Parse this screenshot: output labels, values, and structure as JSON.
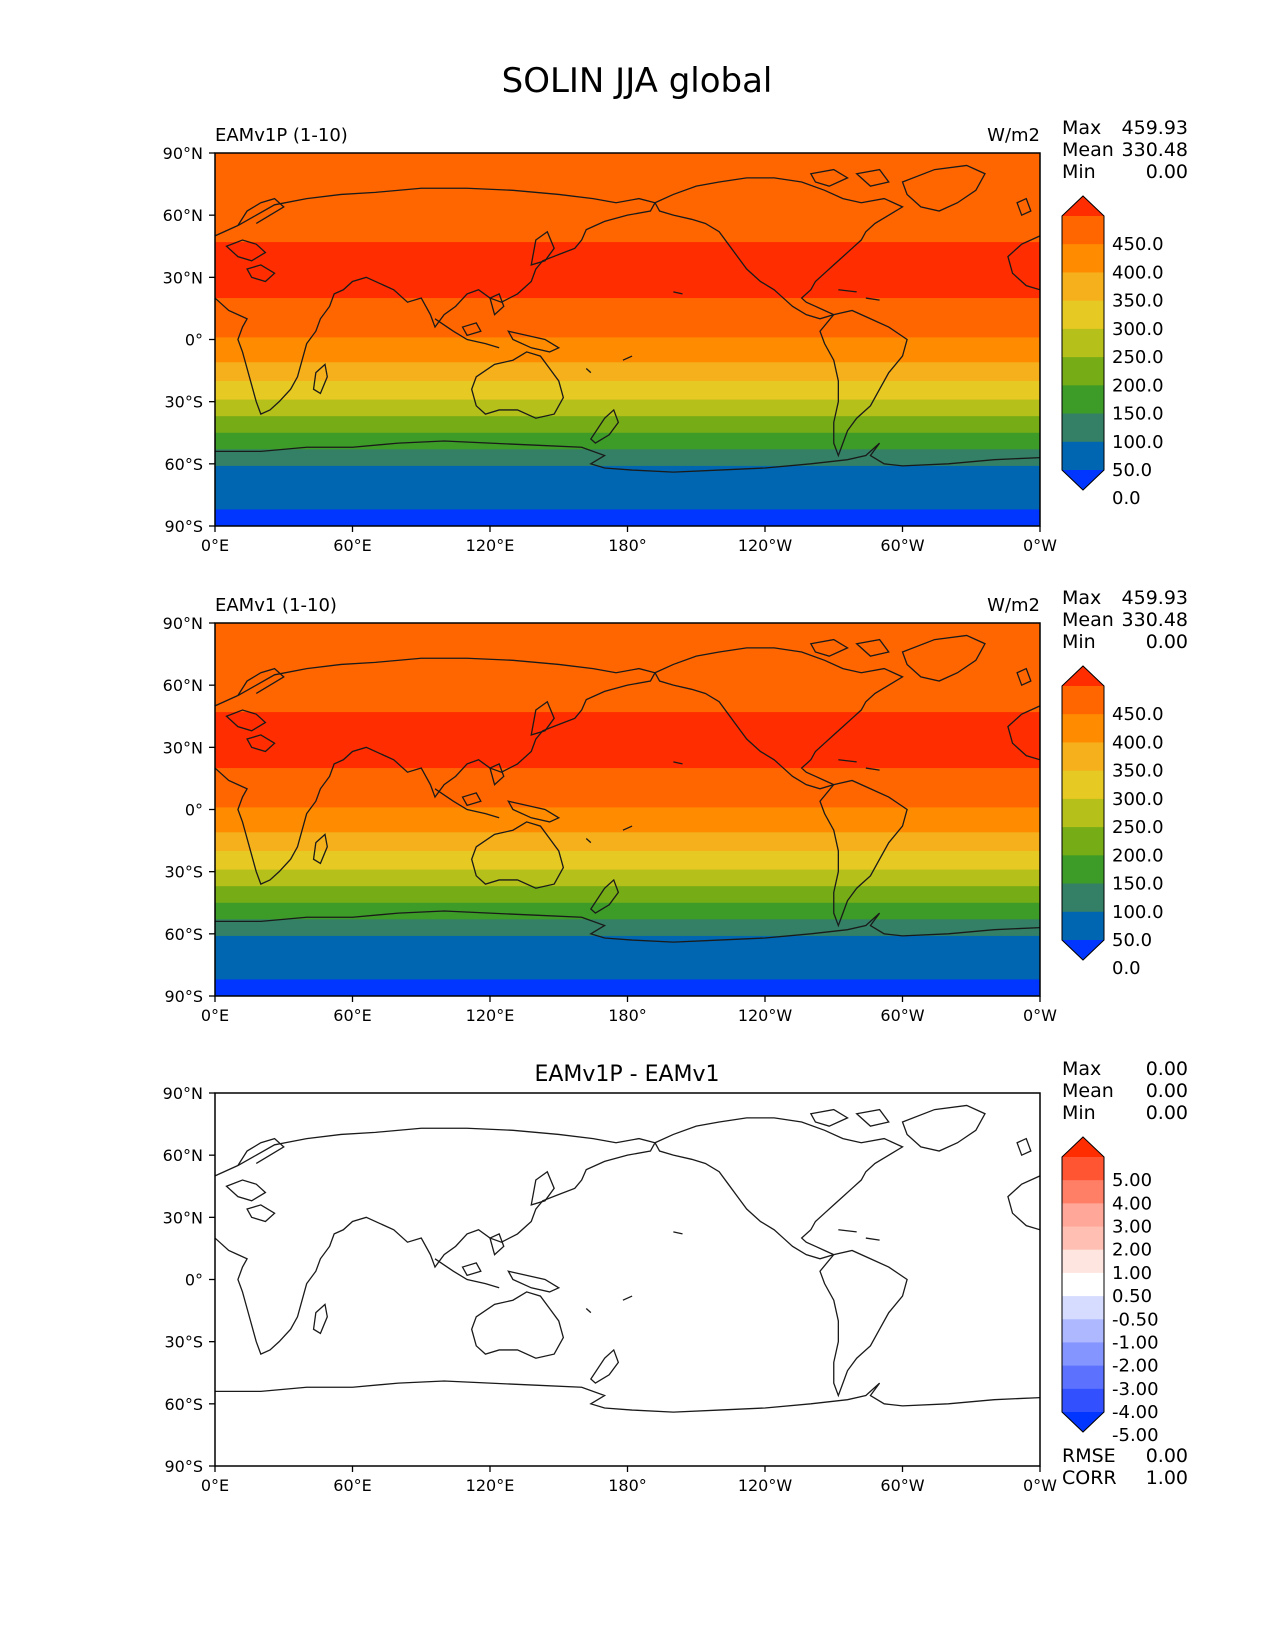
{
  "title": "SOLIN JJA global",
  "chart_data": [
    {
      "type": "heatmap",
      "title": "EAMv1P (1-10)",
      "units": "W/m2",
      "stats": [
        {
          "label": "Max",
          "value": "459.93"
        },
        {
          "label": "Mean",
          "value": "330.48"
        },
        {
          "label": "Min",
          "value": "0.00"
        }
      ],
      "xlim": [
        0,
        360
      ],
      "ylim": [
        -90,
        90
      ],
      "xticks": [
        "0°E",
        "60°E",
        "120°E",
        "180°",
        "120°W",
        "60°W",
        "0°W"
      ],
      "yticks": [
        "90°N",
        "60°N",
        "30°N",
        "0°",
        "30°S",
        "60°S",
        "90°S"
      ],
      "colorbar_labels": [
        "450.0",
        "400.0",
        "350.0",
        "300.0",
        "250.0",
        "200.0",
        "150.0",
        "100.0",
        "50.0",
        "0.0"
      ],
      "colorbar_colors": [
        "#ff2d00",
        "#ff6600",
        "#ff8c00",
        "#f5b01c",
        "#e6c922",
        "#b5c01b",
        "#76ad16",
        "#3d9b28",
        "#338066",
        "#0066b2",
        "#0036ff"
      ],
      "bands": [
        {
          "lat_top": 90,
          "lat_bottom": 47,
          "color": "#ff6600"
        },
        {
          "lat_top": 47,
          "lat_bottom": 20,
          "color": "#ff2d00"
        },
        {
          "lat_top": 20,
          "lat_bottom": 1,
          "color": "#ff6600"
        },
        {
          "lat_top": 1,
          "lat_bottom": -11,
          "color": "#ff8c00"
        },
        {
          "lat_top": -11,
          "lat_bottom": -20,
          "color": "#f5b01c"
        },
        {
          "lat_top": -20,
          "lat_bottom": -29,
          "color": "#e6c922"
        },
        {
          "lat_top": -29,
          "lat_bottom": -37,
          "color": "#b5c01b"
        },
        {
          "lat_top": -37,
          "lat_bottom": -45,
          "color": "#76ad16"
        },
        {
          "lat_top": -45,
          "lat_bottom": -53,
          "color": "#3d9b28"
        },
        {
          "lat_top": -53,
          "lat_bottom": -61,
          "color": "#338066"
        },
        {
          "lat_top": -61,
          "lat_bottom": -82,
          "color": "#0066b2"
        },
        {
          "lat_top": -82,
          "lat_bottom": -90,
          "color": "#0036ff"
        }
      ]
    },
    {
      "type": "heatmap",
      "title": "EAMv1 (1-10)",
      "units": "W/m2",
      "stats": [
        {
          "label": "Max",
          "value": "459.93"
        },
        {
          "label": "Mean",
          "value": "330.48"
        },
        {
          "label": "Min",
          "value": "0.00"
        }
      ],
      "xlim": [
        0,
        360
      ],
      "ylim": [
        -90,
        90
      ],
      "xticks": [
        "0°E",
        "60°E",
        "120°E",
        "180°",
        "120°W",
        "60°W",
        "0°W"
      ],
      "yticks": [
        "90°N",
        "60°N",
        "30°N",
        "0°",
        "30°S",
        "60°S",
        "90°S"
      ],
      "colorbar_labels": [
        "450.0",
        "400.0",
        "350.0",
        "300.0",
        "250.0",
        "200.0",
        "150.0",
        "100.0",
        "50.0",
        "0.0"
      ],
      "colorbar_colors": [
        "#ff2d00",
        "#ff6600",
        "#ff8c00",
        "#f5b01c",
        "#e6c922",
        "#b5c01b",
        "#76ad16",
        "#3d9b28",
        "#338066",
        "#0066b2",
        "#0036ff"
      ],
      "bands": [
        {
          "lat_top": 90,
          "lat_bottom": 47,
          "color": "#ff6600"
        },
        {
          "lat_top": 47,
          "lat_bottom": 20,
          "color": "#ff2d00"
        },
        {
          "lat_top": 20,
          "lat_bottom": 1,
          "color": "#ff6600"
        },
        {
          "lat_top": 1,
          "lat_bottom": -11,
          "color": "#ff8c00"
        },
        {
          "lat_top": -11,
          "lat_bottom": -20,
          "color": "#f5b01c"
        },
        {
          "lat_top": -20,
          "lat_bottom": -29,
          "color": "#e6c922"
        },
        {
          "lat_top": -29,
          "lat_bottom": -37,
          "color": "#b5c01b"
        },
        {
          "lat_top": -37,
          "lat_bottom": -45,
          "color": "#76ad16"
        },
        {
          "lat_top": -45,
          "lat_bottom": -53,
          "color": "#3d9b28"
        },
        {
          "lat_top": -53,
          "lat_bottom": -61,
          "color": "#338066"
        },
        {
          "lat_top": -61,
          "lat_bottom": -82,
          "color": "#0066b2"
        },
        {
          "lat_top": -82,
          "lat_bottom": -90,
          "color": "#0036ff"
        }
      ]
    },
    {
      "type": "heatmap",
      "title": "EAMv1P - EAMv1",
      "units": "",
      "stats": [
        {
          "label": "Max",
          "value": "0.00"
        },
        {
          "label": "Mean",
          "value": "0.00"
        },
        {
          "label": "Min",
          "value": "0.00"
        }
      ],
      "extra_stats": [
        {
          "label": "RMSE",
          "value": "0.00"
        },
        {
          "label": "CORR",
          "value": "1.00"
        }
      ],
      "xlim": [
        0,
        360
      ],
      "ylim": [
        -90,
        90
      ],
      "xticks": [
        "0°E",
        "60°E",
        "120°E",
        "180°",
        "120°W",
        "60°W",
        "0°W"
      ],
      "yticks": [
        "90°N",
        "60°N",
        "30°N",
        "0°",
        "30°S",
        "60°S",
        "90°S"
      ],
      "colorbar_labels": [
        "5.00",
        "4.00",
        "3.00",
        "2.00",
        "1.00",
        "0.50",
        "-0.50",
        "-1.00",
        "-2.00",
        "-3.00",
        "-4.00",
        "-5.00"
      ],
      "colorbar_colors": [
        "#ff2d00",
        "#ff5533",
        "#ff7f66",
        "#ffa899",
        "#ffbfb3",
        "#ffe5e0",
        "#ffffff",
        "#d6dcff",
        "#adb8ff",
        "#8595ff",
        "#5c72ff",
        "#3350ff",
        "#0036ff"
      ],
      "bands": [
        {
          "lat_top": 90,
          "lat_bottom": -90,
          "color": "#ffffff"
        }
      ]
    }
  ]
}
